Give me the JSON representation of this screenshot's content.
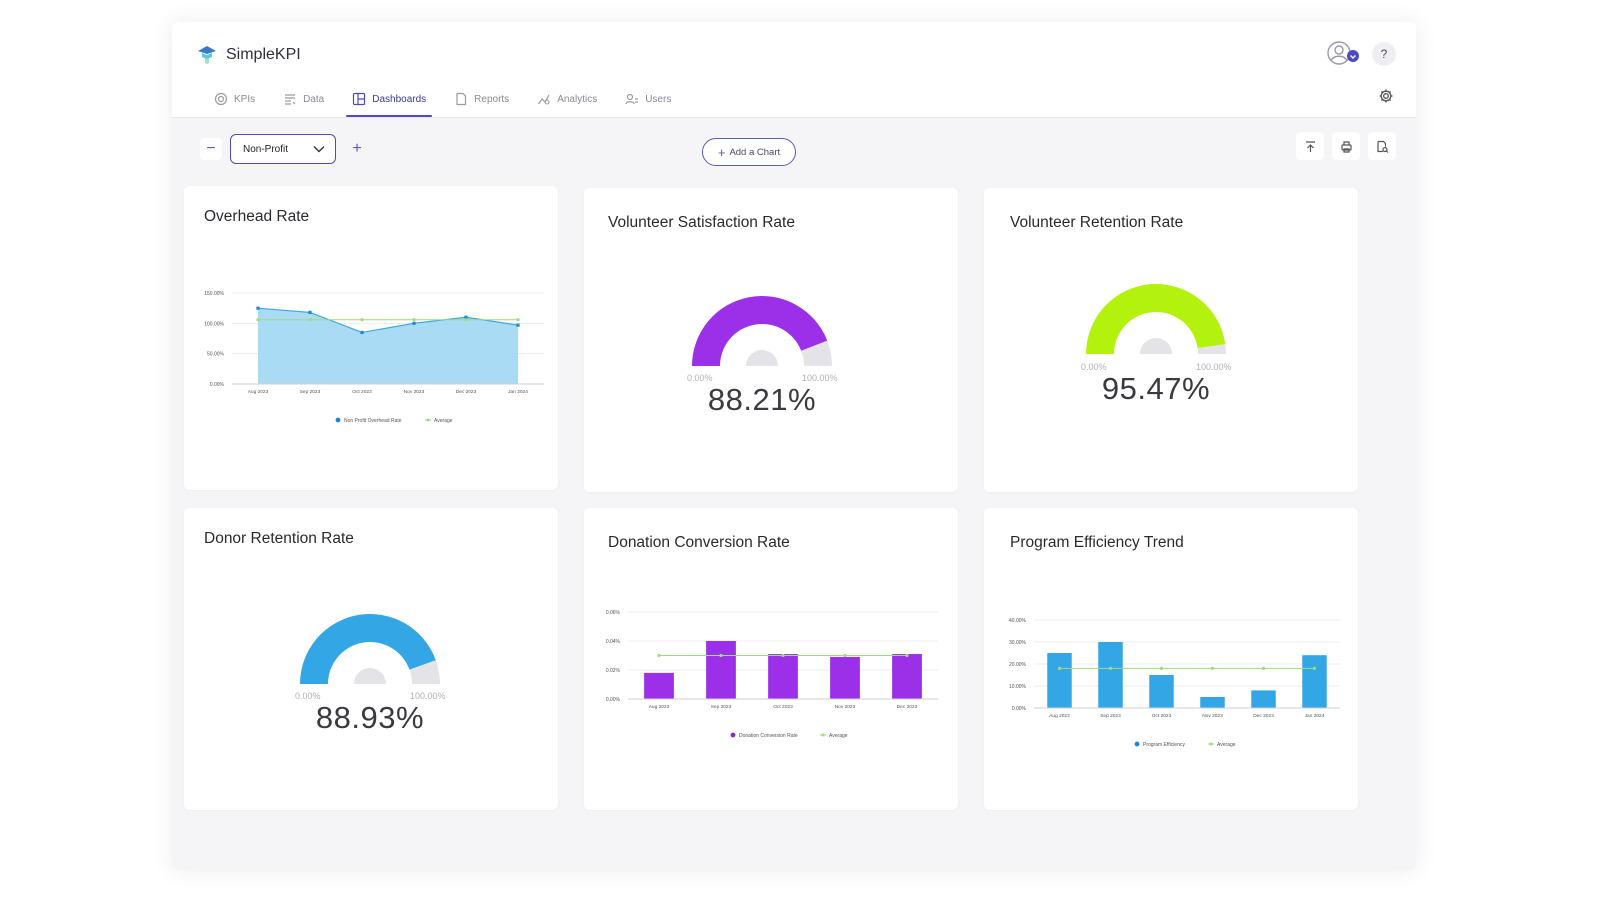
{
  "app": {
    "name": "SimpleKPI",
    "help_label": "?"
  },
  "nav": [
    {
      "label": "KPIs",
      "icon": "target-icon"
    },
    {
      "label": "Data",
      "icon": "data-list-icon"
    },
    {
      "label": "Dashboards",
      "icon": "dashboard-icon",
      "active": true
    },
    {
      "label": "Reports",
      "icon": "report-icon"
    },
    {
      "label": "Analytics",
      "icon": "analytics-icon"
    },
    {
      "label": "Users",
      "icon": "users-icon"
    }
  ],
  "toolbar": {
    "minus_label": "−",
    "plus_label": "+",
    "dashboard_select": "Non-Profit",
    "add_chart_label": "Add a Chart",
    "add_chart_plus": "+"
  },
  "colors": {
    "accent": "#4b4bc8",
    "blue": "#33a6e6",
    "purple": "#9b30e8",
    "green": "#b2f20c",
    "avg": "#9fdc7a"
  },
  "cards": {
    "overhead": {
      "title": "Overhead Rate"
    },
    "vol_sat": {
      "title": "Volunteer Satisfaction Rate",
      "value": "88.21%",
      "min": "0.00%",
      "max": "100.00%",
      "fraction": 0.8821
    },
    "vol_ret": {
      "title": "Volunteer Retention Rate",
      "value": "95.47%",
      "min": "0.00%",
      "max": "100.00%",
      "fraction": 0.9547
    },
    "donor_ret": {
      "title": "Donor Retention Rate",
      "value": "88.93%",
      "min": "0.00%",
      "max": "100.00%",
      "fraction": 0.8893
    },
    "donation_conv": {
      "title": "Donation Conversion Rate"
    },
    "program_eff": {
      "title": "Program Efficiency Trend"
    }
  },
  "chart_data": [
    {
      "id": "overhead",
      "type": "area",
      "categories": [
        "Aug 2023",
        "Sep 2023",
        "Oct 2023",
        "Nov 2023",
        "Dec 2023",
        "Jan 2024"
      ],
      "series": [
        {
          "name": "Non Profit Overhead Rate",
          "values": [
            125,
            118,
            85,
            100,
            110,
            97
          ]
        },
        {
          "name": "Average",
          "values": [
            106,
            106,
            106,
            106,
            106,
            106
          ]
        }
      ],
      "ylim": [
        0,
        150
      ],
      "yticks": [
        "0.00%",
        "50.00%",
        "100.00%",
        "150.00%"
      ],
      "ytick_values": [
        0,
        50,
        100,
        150
      ]
    },
    {
      "id": "donation_conv",
      "type": "bar",
      "categories": [
        "Aug 2023",
        "Sep 2023",
        "Oct 2023",
        "Nov 2023",
        "Dec 2023"
      ],
      "series": [
        {
          "name": "Donation Conversion Rate",
          "values": [
            0.018,
            0.04,
            0.031,
            0.029,
            0.031
          ]
        },
        {
          "name": "Average",
          "values": [
            0.03,
            0.03,
            0.03,
            0.03,
            0.03
          ]
        }
      ],
      "ylim": [
        0,
        0.06
      ],
      "yticks": [
        "0.00%",
        "0.02%",
        "0.04%",
        "0.06%"
      ],
      "ytick_values": [
        0,
        0.02,
        0.04,
        0.06
      ]
    },
    {
      "id": "program_eff",
      "type": "bar",
      "categories": [
        "Aug 2023",
        "Sep 2023",
        "Oct 2023",
        "Nov 2023",
        "Dec 2023",
        "Jan 2024"
      ],
      "series": [
        {
          "name": "Program Efficiency",
          "values": [
            25,
            30,
            15,
            5,
            8,
            24
          ]
        },
        {
          "name": "Average",
          "values": [
            18,
            18,
            18,
            18,
            18,
            18
          ]
        }
      ],
      "ylim": [
        0,
        40
      ],
      "yticks": [
        "0.00%",
        "10.00%",
        "20.00%",
        "30.00%",
        "40.00%"
      ],
      "ytick_values": [
        0,
        10,
        20,
        30,
        40
      ]
    }
  ]
}
